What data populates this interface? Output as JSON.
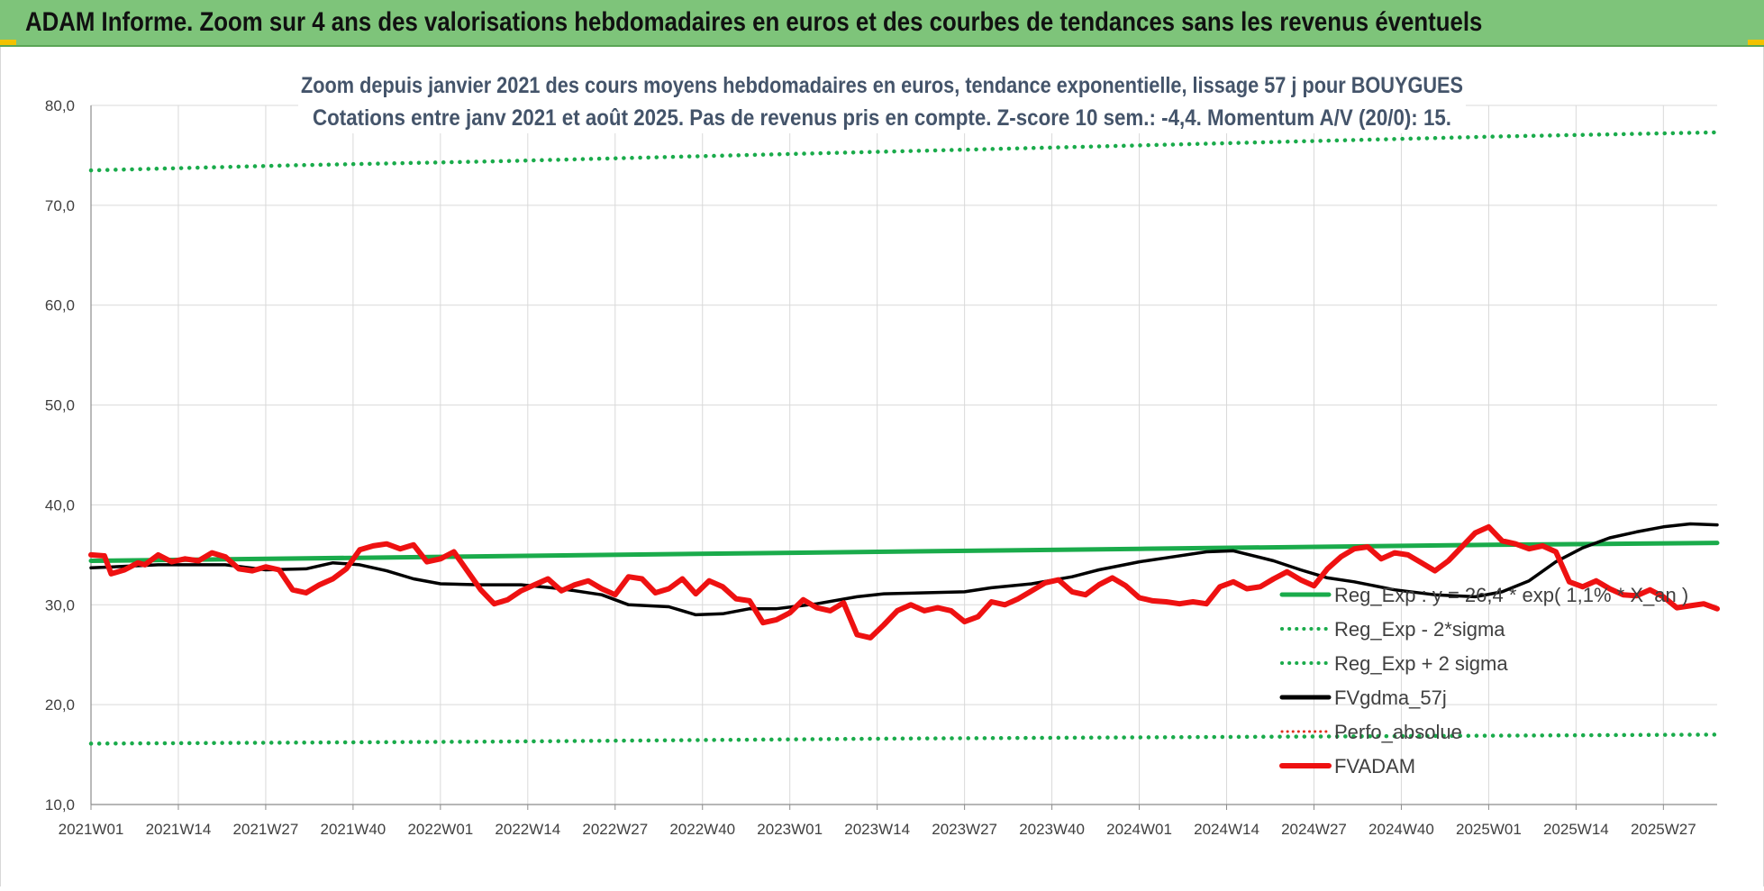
{
  "header": {
    "title": "ADAM Informe. Zoom sur 4 ans des valorisations hebdomadaires en euros et des courbes de tendances sans les revenus éventuels"
  },
  "chart_data": {
    "type": "line",
    "title_lines": [
      "Zoom depuis janvier 2021 des cours moyens hebdomadaires en euros, tendance exponentielle, lissage 57 j pour BOUYGUES",
      "Cotations entre janv 2021 et août 2025.  Pas de revenus pris en compte. Z-score 10 sem.: -4,4. Momentum A/V (20/0): 15."
    ],
    "ylim": [
      10,
      80
    ],
    "y_ticks": [
      "10,0",
      "20,0",
      "30,0",
      "40,0",
      "50,0",
      "60,0",
      "70,0",
      "80,0"
    ],
    "x_range": [
      0,
      242
    ],
    "x_ticks": [
      {
        "label": "2021W01",
        "week": 0
      },
      {
        "label": "2021W14",
        "week": 13
      },
      {
        "label": "2021W27",
        "week": 26
      },
      {
        "label": "2021W40",
        "week": 39
      },
      {
        "label": "2022W01",
        "week": 52
      },
      {
        "label": "2022W14",
        "week": 65
      },
      {
        "label": "2022W27",
        "week": 78
      },
      {
        "label": "2022W40",
        "week": 91
      },
      {
        "label": "2023W01",
        "week": 104
      },
      {
        "label": "2023W14",
        "week": 117
      },
      {
        "label": "2023W27",
        "week": 130
      },
      {
        "label": "2023W40",
        "week": 143
      },
      {
        "label": "2024W01",
        "week": 156
      },
      {
        "label": "2024W14",
        "week": 169
      },
      {
        "label": "2024W27",
        "week": 182
      },
      {
        "label": "2024W40",
        "week": 195
      },
      {
        "label": "2025W01",
        "week": 208
      },
      {
        "label": "2025W14",
        "week": 221
      },
      {
        "label": "2025W27",
        "week": 234
      }
    ],
    "grid": true,
    "legend_position": "bottom-right",
    "series": [
      {
        "name": "Reg_Exp : y = 26,4 * exp( 1,1% *  X_an )",
        "style": "solid",
        "color": "#1aab4b",
        "points": [
          [
            0,
            34.4
          ],
          [
            52,
            34.8
          ],
          [
            104,
            35.2
          ],
          [
            156,
            35.6
          ],
          [
            208,
            36.0
          ],
          [
            242,
            36.2
          ]
        ]
      },
      {
        "name": "Reg_Exp - 2*sigma",
        "style": "dotted",
        "color": "#1aab4b",
        "points": [
          [
            0,
            16.1
          ],
          [
            60,
            16.3
          ],
          [
            120,
            16.6
          ],
          [
            180,
            16.8
          ],
          [
            242,
            17.0
          ]
        ]
      },
      {
        "name": "Reg_Exp + 2 sigma",
        "style": "dotted",
        "color": "#1aab4b",
        "points": [
          [
            0,
            73.5
          ],
          [
            30,
            74.0
          ],
          [
            60,
            74.4
          ],
          [
            90,
            74.9
          ],
          [
            120,
            75.4
          ],
          [
            150,
            75.9
          ],
          [
            180,
            76.4
          ],
          [
            210,
            76.9
          ],
          [
            242,
            77.3
          ]
        ]
      },
      {
        "name": "FVgdma_57j",
        "style": "solid",
        "color": "#000000",
        "points": [
          [
            0,
            33.7
          ],
          [
            10,
            34.0
          ],
          [
            20,
            34.0
          ],
          [
            26,
            33.5
          ],
          [
            32,
            33.6
          ],
          [
            36,
            34.2
          ],
          [
            40,
            34.0
          ],
          [
            44,
            33.4
          ],
          [
            48,
            32.6
          ],
          [
            52,
            32.1
          ],
          [
            58,
            32.0
          ],
          [
            64,
            32.0
          ],
          [
            70,
            31.6
          ],
          [
            76,
            31.0
          ],
          [
            80,
            30.0
          ],
          [
            86,
            29.8
          ],
          [
            90,
            29.0
          ],
          [
            94,
            29.1
          ],
          [
            98,
            29.6
          ],
          [
            102,
            29.6
          ],
          [
            108,
            30.1
          ],
          [
            114,
            30.8
          ],
          [
            118,
            31.1
          ],
          [
            124,
            31.2
          ],
          [
            130,
            31.3
          ],
          [
            134,
            31.7
          ],
          [
            140,
            32.1
          ],
          [
            146,
            32.8
          ],
          [
            150,
            33.5
          ],
          [
            156,
            34.3
          ],
          [
            160,
            34.7
          ],
          [
            166,
            35.3
          ],
          [
            170,
            35.4
          ],
          [
            176,
            34.4
          ],
          [
            180,
            33.5
          ],
          [
            184,
            32.7
          ],
          [
            188,
            32.3
          ],
          [
            194,
            31.5
          ],
          [
            200,
            31.0
          ],
          [
            206,
            30.8
          ],
          [
            210,
            31.3
          ],
          [
            214,
            32.4
          ],
          [
            218,
            34.3
          ],
          [
            222,
            35.7
          ],
          [
            226,
            36.7
          ],
          [
            230,
            37.3
          ],
          [
            234,
            37.8
          ],
          [
            238,
            38.1
          ],
          [
            242,
            38.0
          ]
        ]
      },
      {
        "name": "Perfo_absolue",
        "style": "dotted",
        "color": "#e0301e",
        "points": []
      },
      {
        "name": "FVADAM",
        "style": "solid",
        "color": "#ee1111",
        "points": [
          [
            0,
            35.0
          ],
          [
            2,
            34.9
          ],
          [
            3,
            33.1
          ],
          [
            5,
            33.5
          ],
          [
            7,
            34.2
          ],
          [
            8,
            34.0
          ],
          [
            10,
            35.0
          ],
          [
            12,
            34.3
          ],
          [
            14,
            34.6
          ],
          [
            16,
            34.4
          ],
          [
            18,
            35.2
          ],
          [
            20,
            34.8
          ],
          [
            22,
            33.6
          ],
          [
            24,
            33.4
          ],
          [
            26,
            33.8
          ],
          [
            28,
            33.5
          ],
          [
            30,
            31.5
          ],
          [
            32,
            31.2
          ],
          [
            34,
            32.0
          ],
          [
            36,
            32.6
          ],
          [
            38,
            33.6
          ],
          [
            40,
            35.5
          ],
          [
            42,
            35.9
          ],
          [
            44,
            36.1
          ],
          [
            46,
            35.6
          ],
          [
            48,
            36.0
          ],
          [
            50,
            34.3
          ],
          [
            52,
            34.6
          ],
          [
            54,
            35.3
          ],
          [
            56,
            33.4
          ],
          [
            58,
            31.5
          ],
          [
            60,
            30.1
          ],
          [
            62,
            30.5
          ],
          [
            64,
            31.4
          ],
          [
            66,
            32.0
          ],
          [
            68,
            32.6
          ],
          [
            70,
            31.4
          ],
          [
            72,
            32.0
          ],
          [
            74,
            32.4
          ],
          [
            76,
            31.6
          ],
          [
            78,
            31.0
          ],
          [
            80,
            32.8
          ],
          [
            82,
            32.6
          ],
          [
            84,
            31.2
          ],
          [
            86,
            31.6
          ],
          [
            88,
            32.6
          ],
          [
            90,
            31.1
          ],
          [
            92,
            32.4
          ],
          [
            94,
            31.8
          ],
          [
            96,
            30.6
          ],
          [
            98,
            30.4
          ],
          [
            100,
            28.2
          ],
          [
            102,
            28.5
          ],
          [
            104,
            29.2
          ],
          [
            106,
            30.5
          ],
          [
            108,
            29.7
          ],
          [
            110,
            29.4
          ],
          [
            112,
            30.2
          ],
          [
            114,
            27.0
          ],
          [
            116,
            26.7
          ],
          [
            118,
            28.0
          ],
          [
            120,
            29.4
          ],
          [
            122,
            30.0
          ],
          [
            124,
            29.4
          ],
          [
            126,
            29.7
          ],
          [
            128,
            29.4
          ],
          [
            130,
            28.3
          ],
          [
            132,
            28.8
          ],
          [
            134,
            30.3
          ],
          [
            136,
            30.0
          ],
          [
            138,
            30.6
          ],
          [
            140,
            31.4
          ],
          [
            142,
            32.2
          ],
          [
            144,
            32.5
          ],
          [
            146,
            31.3
          ],
          [
            148,
            31.0
          ],
          [
            150,
            32.0
          ],
          [
            152,
            32.7
          ],
          [
            154,
            31.9
          ],
          [
            156,
            30.7
          ],
          [
            158,
            30.4
          ],
          [
            160,
            30.3
          ],
          [
            162,
            30.1
          ],
          [
            164,
            30.3
          ],
          [
            166,
            30.1
          ],
          [
            168,
            31.8
          ],
          [
            170,
            32.3
          ],
          [
            172,
            31.6
          ],
          [
            174,
            31.8
          ],
          [
            176,
            32.6
          ],
          [
            178,
            33.3
          ],
          [
            180,
            32.5
          ],
          [
            182,
            31.9
          ],
          [
            184,
            33.6
          ],
          [
            186,
            34.8
          ],
          [
            188,
            35.6
          ],
          [
            190,
            35.8
          ],
          [
            192,
            34.6
          ],
          [
            194,
            35.2
          ],
          [
            196,
            35.0
          ],
          [
            198,
            34.2
          ],
          [
            200,
            33.4
          ],
          [
            202,
            34.4
          ],
          [
            204,
            35.8
          ],
          [
            206,
            37.2
          ],
          [
            208,
            37.8
          ],
          [
            210,
            36.4
          ],
          [
            212,
            36.1
          ],
          [
            214,
            35.6
          ],
          [
            216,
            35.9
          ],
          [
            218,
            35.3
          ],
          [
            220,
            32.3
          ],
          [
            222,
            31.8
          ],
          [
            224,
            32.4
          ],
          [
            226,
            31.6
          ],
          [
            228,
            31.0
          ],
          [
            230,
            30.9
          ],
          [
            232,
            31.5
          ],
          [
            234,
            30.8
          ],
          [
            236,
            29.7
          ],
          [
            238,
            29.9
          ],
          [
            240,
            30.1
          ],
          [
            242,
            29.6
          ]
        ]
      }
    ]
  }
}
